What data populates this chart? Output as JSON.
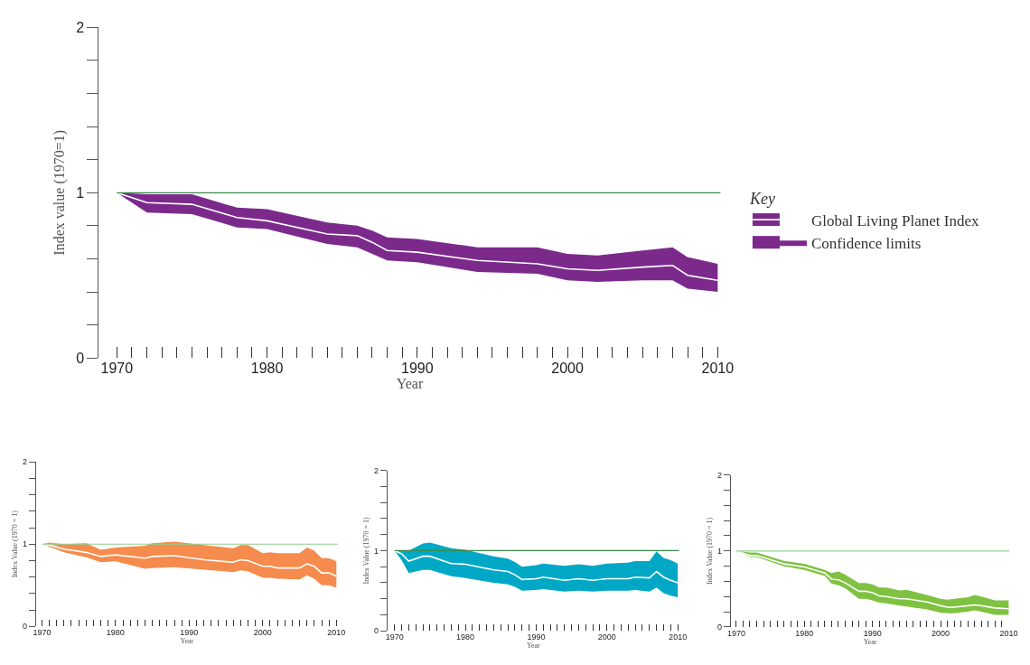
{
  "chart_data": [
    {
      "type": "line",
      "xlabel": "Year",
      "ylabel": "Index value (1970=1)",
      "legend_title": "Key",
      "legend": "right",
      "annotations": [
        "Confidence limits"
      ],
      "colors": [
        "#7b2a8c"
      ],
      "x": [
        1970,
        1972,
        1975,
        1978,
        1980,
        1984,
        1986,
        1987,
        1988,
        1990,
        1994,
        1998,
        2000,
        2002,
        2005,
        2007,
        2008,
        2010
      ],
      "series": [
        {
          "name": "Global Living Planet Index",
          "color": "#ffffff",
          "values": [
            1.0,
            0.94,
            0.93,
            0.85,
            0.83,
            0.75,
            0.74,
            0.7,
            0.65,
            0.64,
            0.59,
            0.57,
            0.54,
            0.53,
            0.55,
            0.56,
            0.5,
            0.47
          ],
          "upper": [
            1.0,
            0.99,
            0.99,
            0.91,
            0.9,
            0.82,
            0.8,
            0.77,
            0.73,
            0.72,
            0.67,
            0.67,
            0.63,
            0.62,
            0.65,
            0.67,
            0.61,
            0.57
          ],
          "lower": [
            1.0,
            0.88,
            0.87,
            0.79,
            0.78,
            0.69,
            0.67,
            0.63,
            0.59,
            0.58,
            0.52,
            0.51,
            0.47,
            0.46,
            0.47,
            0.47,
            0.42,
            0.4
          ]
        }
      ],
      "xlim": [
        1968.8,
        2010.2
      ],
      "ylim": [
        0,
        2
      ],
      "xticks": [
        1970,
        {
          "value": 1971,
          "label": null
        },
        {
          "value": 1972,
          "label": null
        },
        {
          "value": 1973,
          "label": null
        },
        {
          "value": 1974,
          "label": null
        },
        {
          "value": 1975,
          "label": null
        },
        {
          "value": 1976,
          "label": null
        },
        {
          "value": 1977,
          "label": null
        },
        {
          "value": 1978,
          "label": null
        },
        {
          "value": 1979,
          "label": null
        },
        1980,
        {
          "value": 1981,
          "label": null
        },
        {
          "value": 1982,
          "label": null
        },
        {
          "value": 1983,
          "label": null
        },
        {
          "value": 1984,
          "label": null
        },
        {
          "value": 1985,
          "label": null
        },
        {
          "value": 1986,
          "label": null
        },
        {
          "value": 1987,
          "label": null
        },
        {
          "value": 1988,
          "label": null
        },
        {
          "value": 1989,
          "label": null
        },
        1990,
        {
          "value": 1991,
          "label": null
        },
        {
          "value": 1992,
          "label": null
        },
        {
          "value": 1993,
          "label": null
        },
        {
          "value": 1994,
          "label": null
        },
        {
          "value": 1995,
          "label": null
        },
        {
          "value": 1996,
          "label": null
        },
        {
          "value": 1997,
          "label": null
        },
        {
          "value": 1998,
          "label": null
        },
        {
          "value": 1999,
          "label": null
        },
        2000,
        {
          "value": 2001,
          "label": null
        },
        {
          "value": 2002,
          "label": null
        },
        {
          "value": 2003,
          "label": null
        },
        {
          "value": 2004,
          "label": null
        },
        {
          "value": 2005,
          "label": null
        },
        {
          "value": 2006,
          "label": null
        },
        {
          "value": 2007,
          "label": null
        },
        {
          "value": 2008,
          "label": null
        },
        {
          "value": 2009,
          "label": null
        },
        2010
      ],
      "yticks": [
        0,
        {
          "value": 0.2,
          "label": null
        },
        {
          "value": 0.4,
          "label": null
        },
        {
          "value": 0.6,
          "label": null
        },
        {
          "value": 0.8,
          "label": null
        },
        1,
        {
          "value": 1.2,
          "label": null
        },
        {
          "value": 1.4,
          "label": null
        },
        {
          "value": 1.6,
          "label": null
        },
        {
          "value": 1.8,
          "label": null
        },
        2
      ],
      "ref_lines": [
        {
          "axis": "y",
          "value": 1,
          "color": "#3a8a4a"
        }
      ]
    },
    {
      "type": "line",
      "xlabel": "Year",
      "ylabel": "Index Value (1970 = 1)",
      "colors": [
        "#f58b4c"
      ],
      "x": [
        1970,
        1971,
        1973,
        1976,
        1978,
        1980,
        1984,
        1985,
        1988,
        1992,
        1996,
        1997,
        1998,
        2000,
        2001,
        2002,
        2005,
        2006,
        2007,
        2008,
        2009,
        2010
      ],
      "series": [
        {
          "color": "#ffffff",
          "values": [
            1.0,
            0.99,
            0.94,
            0.9,
            0.85,
            0.87,
            0.83,
            0.85,
            0.86,
            0.81,
            0.78,
            0.81,
            0.8,
            0.73,
            0.73,
            0.71,
            0.71,
            0.76,
            0.73,
            0.65,
            0.65,
            0.61
          ],
          "upper": [
            1.0,
            1.02,
            1.0,
            1.01,
            0.93,
            0.96,
            0.98,
            1.01,
            1.03,
            0.99,
            0.95,
            0.99,
            0.99,
            0.89,
            0.9,
            0.89,
            0.89,
            0.96,
            0.92,
            0.83,
            0.83,
            0.79
          ],
          "lower": [
            1.0,
            0.97,
            0.9,
            0.84,
            0.78,
            0.79,
            0.7,
            0.71,
            0.72,
            0.69,
            0.66,
            0.68,
            0.67,
            0.59,
            0.59,
            0.58,
            0.57,
            0.62,
            0.58,
            0.5,
            0.5,
            0.47
          ]
        }
      ],
      "xlim": [
        1969.2,
        2010.2
      ],
      "ylim": [
        0,
        2
      ],
      "xticks": [
        1970,
        {
          "value": 1971,
          "label": null
        },
        {
          "value": 1972,
          "label": null
        },
        {
          "value": 1973,
          "label": null
        },
        {
          "value": 1974,
          "label": null
        },
        {
          "value": 1975,
          "label": null
        },
        {
          "value": 1976,
          "label": null
        },
        {
          "value": 1977,
          "label": null
        },
        {
          "value": 1978,
          "label": null
        },
        {
          "value": 1979,
          "label": null
        },
        1980,
        {
          "value": 1981,
          "label": null
        },
        {
          "value": 1982,
          "label": null
        },
        {
          "value": 1983,
          "label": null
        },
        {
          "value": 1984,
          "label": null
        },
        {
          "value": 1985,
          "label": null
        },
        {
          "value": 1986,
          "label": null
        },
        {
          "value": 1987,
          "label": null
        },
        {
          "value": 1988,
          "label": null
        },
        {
          "value": 1989,
          "label": null
        },
        1990,
        {
          "value": 1991,
          "label": null
        },
        {
          "value": 1992,
          "label": null
        },
        {
          "value": 1993,
          "label": null
        },
        {
          "value": 1994,
          "label": null
        },
        {
          "value": 1995,
          "label": null
        },
        {
          "value": 1996,
          "label": null
        },
        {
          "value": 1997,
          "label": null
        },
        {
          "value": 1998,
          "label": null
        },
        {
          "value": 1999,
          "label": null
        },
        2000,
        {
          "value": 2001,
          "label": null
        },
        {
          "value": 2002,
          "label": null
        },
        {
          "value": 2003,
          "label": null
        },
        {
          "value": 2004,
          "label": null
        },
        {
          "value": 2005,
          "label": null
        },
        {
          "value": 2006,
          "label": null
        },
        {
          "value": 2007,
          "label": null
        },
        {
          "value": 2008,
          "label": null
        },
        {
          "value": 2009,
          "label": null
        },
        2010
      ],
      "yticks": [
        0,
        {
          "value": 0.2,
          "label": null
        },
        {
          "value": 0.4,
          "label": null
        },
        {
          "value": 0.6,
          "label": null
        },
        {
          "value": 0.8,
          "label": null
        },
        1,
        {
          "value": 1.2,
          "label": null
        },
        {
          "value": 1.4,
          "label": null
        },
        {
          "value": 1.6,
          "label": null
        },
        {
          "value": 1.8,
          "label": null
        },
        2
      ],
      "ref_lines": [
        {
          "axis": "y",
          "value": 1,
          "color": "#8fcf8f"
        }
      ]
    },
    {
      "type": "line",
      "xlabel": "Year",
      "ylabel": "Index Value (1970 = 1)",
      "colors": [
        "#00a8c6"
      ],
      "x": [
        1970,
        1971,
        1972,
        1974,
        1975,
        1978,
        1980,
        1984,
        1986,
        1987,
        1988,
        1990,
        1991,
        1994,
        1996,
        1998,
        2000,
        2003,
        2004,
        2006,
        2007,
        2008,
        2009,
        2010
      ],
      "series": [
        {
          "color": "#ffffff",
          "values": [
            1.0,
            0.96,
            0.87,
            0.93,
            0.93,
            0.84,
            0.83,
            0.76,
            0.74,
            0.7,
            0.64,
            0.65,
            0.67,
            0.63,
            0.65,
            0.63,
            0.65,
            0.65,
            0.67,
            0.66,
            0.74,
            0.67,
            0.63,
            0.6
          ],
          "upper": [
            1.0,
            1.0,
            1.0,
            1.09,
            1.1,
            1.03,
            1.01,
            0.93,
            0.9,
            0.86,
            0.8,
            0.82,
            0.84,
            0.81,
            0.83,
            0.81,
            0.84,
            0.85,
            0.87,
            0.87,
            0.99,
            0.91,
            0.88,
            0.84
          ],
          "lower": [
            1.0,
            0.88,
            0.72,
            0.76,
            0.76,
            0.68,
            0.66,
            0.6,
            0.58,
            0.55,
            0.5,
            0.51,
            0.52,
            0.49,
            0.5,
            0.49,
            0.5,
            0.5,
            0.51,
            0.49,
            0.54,
            0.47,
            0.44,
            0.42
          ]
        }
      ],
      "xlim": [
        1969.0,
        2010.2
      ],
      "ylim": [
        0,
        2
      ],
      "xticks": [
        1970,
        {
          "value": 1971,
          "label": null
        },
        {
          "value": 1972,
          "label": null
        },
        {
          "value": 1973,
          "label": null
        },
        {
          "value": 1974,
          "label": null
        },
        {
          "value": 1975,
          "label": null
        },
        {
          "value": 1976,
          "label": null
        },
        {
          "value": 1977,
          "label": null
        },
        {
          "value": 1978,
          "label": null
        },
        {
          "value": 1979,
          "label": null
        },
        1980,
        {
          "value": 1981,
          "label": null
        },
        {
          "value": 1982,
          "label": null
        },
        {
          "value": 1983,
          "label": null
        },
        {
          "value": 1984,
          "label": null
        },
        {
          "value": 1985,
          "label": null
        },
        {
          "value": 1986,
          "label": null
        },
        {
          "value": 1987,
          "label": null
        },
        {
          "value": 1988,
          "label": null
        },
        {
          "value": 1989,
          "label": null
        },
        1990,
        {
          "value": 1991,
          "label": null
        },
        {
          "value": 1992,
          "label": null
        },
        {
          "value": 1993,
          "label": null
        },
        {
          "value": 1994,
          "label": null
        },
        {
          "value": 1995,
          "label": null
        },
        {
          "value": 1996,
          "label": null
        },
        {
          "value": 1997,
          "label": null
        },
        {
          "value": 1998,
          "label": null
        },
        {
          "value": 1999,
          "label": null
        },
        2000,
        {
          "value": 2001,
          "label": null
        },
        {
          "value": 2002,
          "label": null
        },
        {
          "value": 2003,
          "label": null
        },
        {
          "value": 2004,
          "label": null
        },
        {
          "value": 2005,
          "label": null
        },
        {
          "value": 2006,
          "label": null
        },
        {
          "value": 2007,
          "label": null
        },
        {
          "value": 2008,
          "label": null
        },
        {
          "value": 2009,
          "label": null
        },
        2010
      ],
      "yticks": [
        0,
        {
          "value": 0.2,
          "label": null
        },
        {
          "value": 0.4,
          "label": null
        },
        {
          "value": 0.6,
          "label": null
        },
        {
          "value": 0.8,
          "label": null
        },
        1,
        {
          "value": 1.2,
          "label": null
        },
        {
          "value": 1.4,
          "label": null
        },
        {
          "value": 1.6,
          "label": null
        },
        {
          "value": 1.8,
          "label": null
        },
        2
      ],
      "ref_lines": [
        {
          "axis": "y",
          "value": 1,
          "color": "#3a8a4a"
        }
      ]
    },
    {
      "type": "line",
      "xlabel": "Year",
      "ylabel": "Index Value (1970 = 1)",
      "colors": [
        "#7fc241"
      ],
      "x": [
        1970,
        1972,
        1973,
        1977,
        1980,
        1983,
        1984,
        1985,
        1986,
        1988,
        1989,
        1990,
        1991,
        1992,
        1994,
        1995,
        1998,
        2000,
        2001,
        2002,
        2004,
        2005,
        2006,
        2008,
        2010
      ],
      "series": [
        {
          "color": "#ffffff",
          "values": [
            1.0,
            0.94,
            0.94,
            0.83,
            0.79,
            0.71,
            0.63,
            0.62,
            0.58,
            0.47,
            0.47,
            0.45,
            0.41,
            0.4,
            0.37,
            0.37,
            0.33,
            0.28,
            0.26,
            0.26,
            0.28,
            0.29,
            0.28,
            0.25,
            0.24
          ],
          "upper": [
            1.0,
            0.98,
            0.98,
            0.87,
            0.83,
            0.75,
            0.71,
            0.73,
            0.69,
            0.58,
            0.58,
            0.56,
            0.52,
            0.52,
            0.48,
            0.49,
            0.42,
            0.37,
            0.36,
            0.37,
            0.39,
            0.42,
            0.4,
            0.35,
            0.35
          ],
          "lower": [
            1.0,
            0.92,
            0.92,
            0.8,
            0.75,
            0.67,
            0.57,
            0.55,
            0.51,
            0.37,
            0.37,
            0.35,
            0.32,
            0.31,
            0.28,
            0.27,
            0.23,
            0.19,
            0.18,
            0.18,
            0.2,
            0.22,
            0.2,
            0.16,
            0.16
          ]
        }
      ],
      "xlim": [
        1969.2,
        2010.1
      ],
      "ylim": [
        0,
        2
      ],
      "xticks": [
        1970,
        {
          "value": 1971,
          "label": null
        },
        {
          "value": 1972,
          "label": null
        },
        {
          "value": 1973,
          "label": null
        },
        {
          "value": 1974,
          "label": null
        },
        {
          "value": 1975,
          "label": null
        },
        {
          "value": 1976,
          "label": null
        },
        {
          "value": 1977,
          "label": null
        },
        {
          "value": 1978,
          "label": null
        },
        {
          "value": 1979,
          "label": null
        },
        1980,
        {
          "value": 1981,
          "label": null
        },
        {
          "value": 1982,
          "label": null
        },
        {
          "value": 1983,
          "label": null
        },
        {
          "value": 1984,
          "label": null
        },
        {
          "value": 1985,
          "label": null
        },
        {
          "value": 1986,
          "label": null
        },
        {
          "value": 1987,
          "label": null
        },
        {
          "value": 1988,
          "label": null
        },
        {
          "value": 1989,
          "label": null
        },
        1990,
        {
          "value": 1991,
          "label": null
        },
        {
          "value": 1992,
          "label": null
        },
        {
          "value": 1993,
          "label": null
        },
        {
          "value": 1994,
          "label": null
        },
        {
          "value": 1995,
          "label": null
        },
        {
          "value": 1996,
          "label": null
        },
        {
          "value": 1997,
          "label": null
        },
        {
          "value": 1998,
          "label": null
        },
        {
          "value": 1999,
          "label": null
        },
        2000,
        {
          "value": 2001,
          "label": null
        },
        {
          "value": 2002,
          "label": null
        },
        {
          "value": 2003,
          "label": null
        },
        {
          "value": 2004,
          "label": null
        },
        {
          "value": 2005,
          "label": null
        },
        {
          "value": 2006,
          "label": null
        },
        {
          "value": 2007,
          "label": null
        },
        {
          "value": 2008,
          "label": null
        },
        {
          "value": 2009,
          "label": null
        },
        2010
      ],
      "yticks": [
        0,
        {
          "value": 0.2,
          "label": null
        },
        {
          "value": 0.4,
          "label": null
        },
        {
          "value": 0.6,
          "label": null
        },
        {
          "value": 0.8,
          "label": null
        },
        1,
        {
          "value": 1.2,
          "label": null
        },
        {
          "value": 1.4,
          "label": null
        },
        {
          "value": 1.6,
          "label": null
        },
        {
          "value": 1.8,
          "label": null
        },
        2
      ],
      "ref_lines": [
        {
          "axis": "y",
          "value": 1,
          "color": "#8fcf8f"
        }
      ]
    }
  ]
}
